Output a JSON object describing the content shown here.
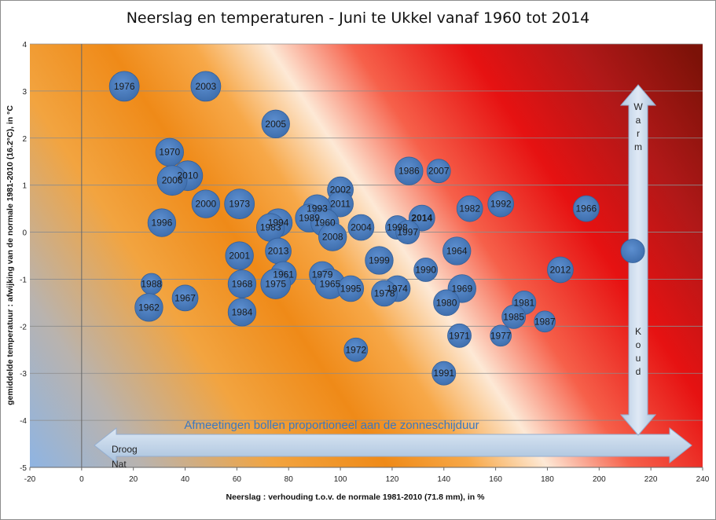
{
  "chart_data": {
    "type": "bubble",
    "title": "Neerslag en temperaturen - Juni te Ukkel vanaf 1960 tot 2014",
    "xlabel": "Neerslag : verhouding  t.o.v.  de normale 1981-2010 (71.8 mm), in %",
    "ylabel": "gemiddelde temperatuur : afwijking  van de normale 1981-2010 (16.2°C), in °C",
    "xlim": [
      -20,
      240
    ],
    "ylim": [
      -5,
      4
    ],
    "x_ticks": [
      "-20",
      "0",
      "20",
      "40",
      "60",
      "80",
      "100",
      "120",
      "140",
      "160",
      "180",
      "200",
      "220",
      "240"
    ],
    "y_ticks": [
      "4",
      "3",
      "2",
      "1",
      "0",
      "-1",
      "-2",
      "-3",
      "-4",
      "-5"
    ],
    "grid": "horizontal",
    "annotation_bubbles": "Afmeetingen bollen proportioneel aan de zonneschijduur",
    "arrow_horizontal": {
      "left_label": "Droog",
      "left_label_2": "Nat"
    },
    "arrow_vertical": {
      "top_label": "Warm",
      "bottom_label": "Koud"
    },
    "highlight_year": "2014",
    "highlight_color": "#ffff00",
    "bubble_color": "#4f81bd",
    "points": [
      {
        "label": "1976",
        "x": 16.5,
        "y": 3.1,
        "size": 0.8
      },
      {
        "label": "2003",
        "x": 48,
        "y": 3.1,
        "size": 0.8
      },
      {
        "label": "2005",
        "x": 75,
        "y": 2.3,
        "size": 0.7
      },
      {
        "label": "1970",
        "x": 34,
        "y": 1.7,
        "size": 0.7
      },
      {
        "label": "2010",
        "x": 41,
        "y": 1.2,
        "size": 0.8
      },
      {
        "label": "2006",
        "x": 35,
        "y": 1.1,
        "size": 0.8
      },
      {
        "label": "1986",
        "x": 126.5,
        "y": 1.3,
        "size": 0.7
      },
      {
        "label": "2007",
        "x": 138,
        "y": 1.3,
        "size": 0.5
      },
      {
        "label": "2002",
        "x": 100,
        "y": 0.9,
        "size": 0.6
      },
      {
        "label": "2011",
        "x": 100,
        "y": 0.6,
        "size": 0.6
      },
      {
        "label": "2000",
        "x": 48,
        "y": 0.6,
        "size": 0.7
      },
      {
        "label": "1973",
        "x": 61,
        "y": 0.6,
        "size": 0.8
      },
      {
        "label": "1992",
        "x": 162,
        "y": 0.6,
        "size": 0.6
      },
      {
        "label": "1982",
        "x": 150,
        "y": 0.5,
        "size": 0.6
      },
      {
        "label": "1966",
        "x": 195,
        "y": 0.5,
        "size": 0.6
      },
      {
        "label": "1993",
        "x": 91,
        "y": 0.5,
        "size": 0.7
      },
      {
        "label": "2014",
        "x": 131.5,
        "y": 0.3,
        "size": 0.6
      },
      {
        "label": "1989",
        "x": 88,
        "y": 0.3,
        "size": 0.7
      },
      {
        "label": "1960",
        "x": 94,
        "y": 0.2,
        "size": 0.7
      },
      {
        "label": "1994",
        "x": 76,
        "y": 0.2,
        "size": 0.7
      },
      {
        "label": "1996",
        "x": 31,
        "y": 0.2,
        "size": 0.7
      },
      {
        "label": "1983",
        "x": 73,
        "y": 0.1,
        "size": 0.7
      },
      {
        "label": "2004",
        "x": 108,
        "y": 0.1,
        "size": 0.6
      },
      {
        "label": "1998",
        "x": 122,
        "y": 0.1,
        "size": 0.5
      },
      {
        "label": "1997",
        "x": 126,
        "y": 0.0,
        "size": 0.5
      },
      {
        "label": "2008",
        "x": 97,
        "y": -0.1,
        "size": 0.7
      },
      {
        "label": "2001",
        "x": 61,
        "y": -0.5,
        "size": 0.7
      },
      {
        "label": "2013",
        "x": 76,
        "y": -0.4,
        "size": 0.6
      },
      {
        "label": "1964",
        "x": 145,
        "y": -0.4,
        "size": 0.7
      },
      {
        "label": "1999",
        "x": 115,
        "y": -0.6,
        "size": 0.7
      },
      {
        "label": "1990",
        "x": 133,
        "y": -0.8,
        "size": 0.5
      },
      {
        "label": "2012",
        "x": 185,
        "y": -0.8,
        "size": 0.6
      },
      {
        "label": "1961",
        "x": 78,
        "y": -0.9,
        "size": 0.6
      },
      {
        "label": "1979",
        "x": 93,
        "y": -0.9,
        "size": 0.6
      },
      {
        "label": "1968",
        "x": 62,
        "y": -1.1,
        "size": 0.7
      },
      {
        "label": "1975",
        "x": 75,
        "y": -1.1,
        "size": 0.8
      },
      {
        "label": "1965",
        "x": 96,
        "y": -1.1,
        "size": 0.8
      },
      {
        "label": "1995",
        "x": 104,
        "y": -1.2,
        "size": 0.6
      },
      {
        "label": "1974",
        "x": 122,
        "y": -1.2,
        "size": 0.6
      },
      {
        "label": "1978",
        "x": 117,
        "y": -1.3,
        "size": 0.6
      },
      {
        "label": "1969",
        "x": 147,
        "y": -1.2,
        "size": 0.7
      },
      {
        "label": "1988",
        "x": 27,
        "y": -1.1,
        "size": 0.4
      },
      {
        "label": "1967",
        "x": 40,
        "y": -1.4,
        "size": 0.6
      },
      {
        "label": "1980",
        "x": 141,
        "y": -1.5,
        "size": 0.6
      },
      {
        "label": "1981",
        "x": 171,
        "y": -1.5,
        "size": 0.5
      },
      {
        "label": "1962",
        "x": 26,
        "y": -1.6,
        "size": 0.7
      },
      {
        "label": "1984",
        "x": 62,
        "y": -1.7,
        "size": 0.7
      },
      {
        "label": "1985",
        "x": 167,
        "y": -1.8,
        "size": 0.5
      },
      {
        "label": "1987",
        "x": 179,
        "y": -1.9,
        "size": 0.4
      },
      {
        "label": "1971",
        "x": 146,
        "y": -2.2,
        "size": 0.5
      },
      {
        "label": "1977",
        "x": 162,
        "y": -2.2,
        "size": 0.4
      },
      {
        "label": "1972",
        "x": 106,
        "y": -2.5,
        "size": 0.5
      },
      {
        "label": "1991",
        "x": 140,
        "y": -3.0,
        "size": 0.5
      },
      {
        "label": "",
        "x": 213,
        "y": -0.4,
        "size": 0.5
      }
    ]
  }
}
